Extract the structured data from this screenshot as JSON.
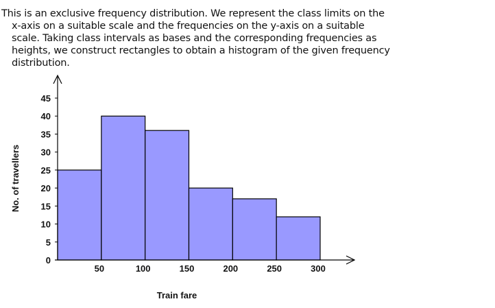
{
  "intro_lines": [
    "This is an exclusive frequency distribution. We represent the class limits on the",
    "x-axis on a suitable scale and the frequencies on the y-axis on a suitable",
    "scale. Taking class intervals as bases and the corresponding frequencies as",
    "heights, we construct rectangles to obtain a histogram of the given frequency",
    "distribution."
  ],
  "chart_data": {
    "type": "bar",
    "subtype": "histogram",
    "bins": [
      [
        0,
        50
      ],
      [
        50,
        100
      ],
      [
        100,
        150
      ],
      [
        150,
        200
      ],
      [
        200,
        250
      ],
      [
        250,
        300
      ]
    ],
    "values": [
      25,
      40,
      36,
      20,
      17,
      12
    ],
    "xlabel": "Train fare",
    "ylabel": "No. of travellers",
    "xticks": [
      50,
      100,
      150,
      200,
      250,
      300
    ],
    "yticks": [
      0,
      5,
      10,
      15,
      20,
      25,
      30,
      35,
      40,
      45
    ],
    "xlim": [
      0,
      300
    ],
    "ylim": [
      0,
      45
    ],
    "grid": false,
    "bar_color": "#9999ff"
  }
}
